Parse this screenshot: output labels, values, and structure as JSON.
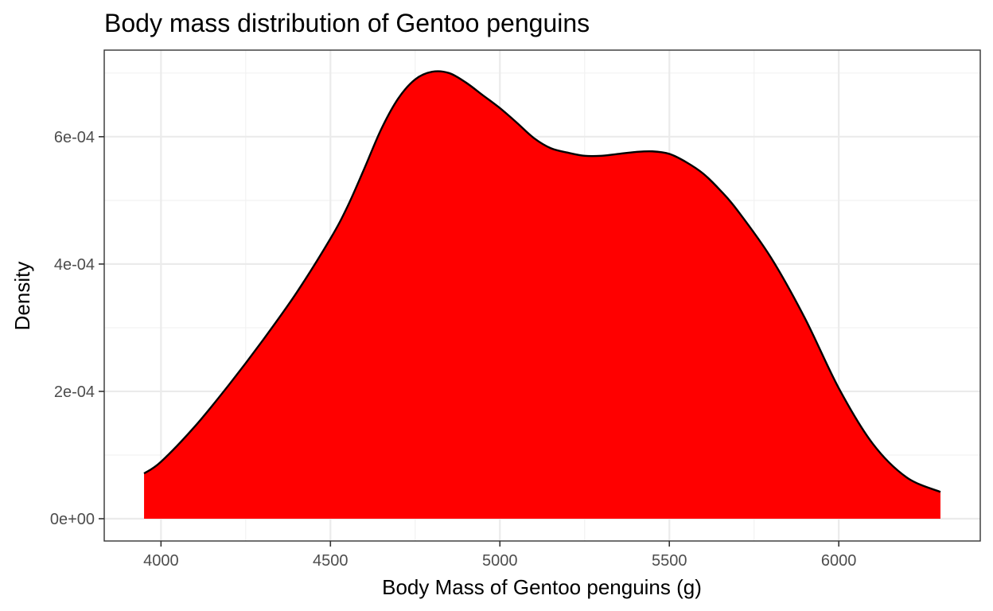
{
  "chart_data": {
    "type": "area",
    "title": "Body mass distribution of Gentoo penguins",
    "xlabel": "Body Mass of Gentoo penguins (g)",
    "ylabel": "Density",
    "xlim": [
      3832.5,
      6417.5
    ],
    "ylim": [
      -3.5e-05,
      0.000736
    ],
    "x_ticks": [
      4000,
      4500,
      5000,
      5500,
      6000
    ],
    "x_tick_labels": [
      "4000",
      "4500",
      "5000",
      "5500",
      "6000"
    ],
    "y_ticks": [
      0,
      0.0002,
      0.0004,
      0.0006
    ],
    "y_tick_labels": [
      "0e+00",
      "2e-04",
      "4e-04",
      "6e-04"
    ],
    "grid": true,
    "legend": "none",
    "series": [
      {
        "fill": "#ff0000",
        "stroke": "#000000",
        "x": [
          3950,
          4000,
          4100,
          4200,
          4300,
          4400,
          4500,
          4550,
          4600,
          4650,
          4700,
          4750,
          4800,
          4850,
          4900,
          4950,
          5000,
          5050,
          5100,
          5150,
          5200,
          5250,
          5300,
          5350,
          5400,
          5450,
          5500,
          5550,
          5600,
          5650,
          5700,
          5800,
          5900,
          6000,
          6100,
          6200,
          6300
        ],
        "y": [
          7.1e-05,
          8.95e-05,
          0.000145,
          0.00021,
          0.00028,
          0.000355,
          0.00044,
          0.00049,
          0.00055,
          0.000612,
          0.00066,
          0.00069,
          0.000702,
          0.0007,
          0.000685,
          0.000665,
          0.000645,
          0.000622,
          0.000598,
          0.000582,
          0.000575,
          0.00057,
          0.00057,
          0.000573,
          0.000576,
          0.000577,
          0.000573,
          0.00056,
          0.000542,
          0.000516,
          0.000485,
          0.00041,
          0.000315,
          0.000205,
          0.000118,
          6.5e-05,
          4.2e-05
        ]
      }
    ]
  }
}
